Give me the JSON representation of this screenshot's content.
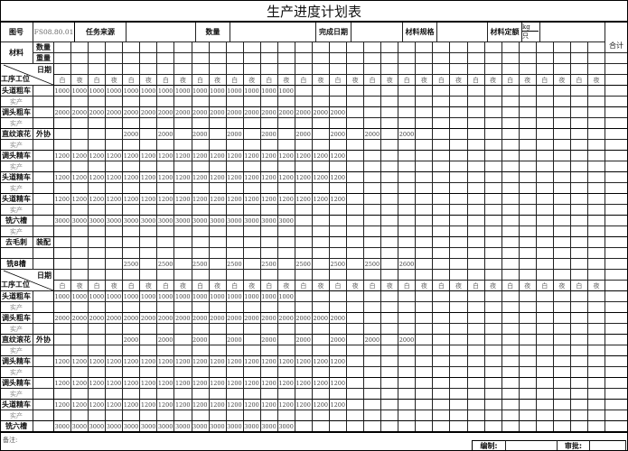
{
  "title": "生产进度计划表",
  "header": {
    "drawing_no_label": "图号",
    "drawing_no": "FS08.80.01",
    "task_source_label": "任务来源",
    "task_source": "",
    "quantity_label": "数量",
    "quantity": "",
    "finish_date_label": "完成日期",
    "finish_date": "",
    "material_spec_label": "材料规格",
    "material_spec": "",
    "material_quota_label": "材料定额",
    "unit_kg": "kg",
    "unit_piece": "只",
    "total_label": "合计"
  },
  "material": {
    "label": "材料",
    "count_label": "数量",
    "weight_label": "重量"
  },
  "date_label": "日期",
  "process_label": "工序工位",
  "shifts": [
    "白",
    "夜",
    "白",
    "夜",
    "白",
    "夜",
    "白",
    "夜",
    "白",
    "夜",
    "白",
    "夜",
    "白",
    "夜",
    "白",
    "夜",
    "白",
    "夜",
    "白",
    "夜",
    "白",
    "夜",
    "白",
    "夜",
    "白",
    "夜",
    "白",
    "夜",
    "白",
    "夜",
    "白",
    "夜"
  ],
  "actual_label": "实产",
  "sections": [
    {
      "rows": [
        {
          "label": "头道粗车",
          "sub": "",
          "actual": true,
          "values": [
            "1000",
            "1000",
            "1000",
            "1000",
            "1000",
            "1000",
            "1000",
            "1000",
            "1000",
            "1000",
            "1000",
            "1000",
            "1000",
            "1000",
            "",
            "",
            "",
            "",
            "",
            "",
            "",
            "",
            "",
            "",
            "",
            "",
            "",
            "",
            "",
            "",
            "",
            ""
          ]
        },
        {
          "label": "调头粗车",
          "sub": "",
          "actual": true,
          "values": [
            "2000",
            "2000",
            "2000",
            "2000",
            "2000",
            "2000",
            "2000",
            "2000",
            "2000",
            "2000",
            "2000",
            "2000",
            "2000",
            "2000",
            "2000",
            "2000",
            "2000",
            "",
            "",
            "",
            "",
            "",
            "",
            "",
            "",
            "",
            "",
            "",
            "",
            "",
            "",
            ""
          ]
        },
        {
          "label": "直纹滚花",
          "sub": "外协",
          "actual": true,
          "values": [
            "",
            "",
            "",
            "",
            "2000",
            "",
            "2000",
            "",
            "2000",
            "",
            "2000",
            "",
            "2000",
            "",
            "2000",
            "",
            "2000",
            "",
            "2000",
            "",
            "2000",
            "",
            "",
            "",
            "",
            "",
            "",
            "",
            "",
            "",
            "",
            ""
          ]
        },
        {
          "label": "调头精车",
          "sub": "",
          "actual": true,
          "values": [
            "1200",
            "1200",
            "1200",
            "1200",
            "1200",
            "1200",
            "1200",
            "1200",
            "1200",
            "1200",
            "1200",
            "1200",
            "1200",
            "1200",
            "1200",
            "1200",
            "1200",
            "",
            "",
            "",
            "",
            "",
            "",
            "",
            "",
            "",
            "",
            "",
            "",
            "",
            "",
            ""
          ]
        },
        {
          "label": "头道精车",
          "sub": "",
          "actual": true,
          "values": [
            "1200",
            "1200",
            "1200",
            "1200",
            "1200",
            "1200",
            "1200",
            "1200",
            "1200",
            "1200",
            "1200",
            "1200",
            "1200",
            "1200",
            "1200",
            "1200",
            "1200",
            "",
            "",
            "",
            "",
            "",
            "",
            "",
            "",
            "",
            "",
            "",
            "",
            "",
            "",
            ""
          ]
        },
        {
          "label": "头道精车",
          "sub": "",
          "actual": true,
          "values": [
            "1200",
            "1200",
            "1200",
            "1200",
            "1200",
            "1200",
            "1200",
            "1200",
            "1200",
            "1200",
            "1200",
            "1200",
            "1200",
            "1200",
            "1200",
            "1200",
            "1200",
            "",
            "",
            "",
            "",
            "",
            "",
            "",
            "",
            "",
            "",
            "",
            "",
            "",
            "",
            ""
          ]
        },
        {
          "label": "铣六槽",
          "sub": "",
          "actual": true,
          "values": [
            "3000",
            "3000",
            "3000",
            "3000",
            "3000",
            "3000",
            "3000",
            "3000",
            "3000",
            "3000",
            "3000",
            "3000",
            "3000",
            "3000",
            "",
            "",
            "",
            "",
            "",
            "",
            "",
            "",
            "",
            "",
            "",
            "",
            "",
            "",
            "",
            "",
            "",
            ""
          ]
        },
        {
          "label": "去毛刺",
          "sub": "装配",
          "actual": false,
          "values": [
            "",
            "",
            "",
            "",
            "",
            "",
            "",
            "",
            "",
            "",
            "",
            "",
            "",
            "",
            "",
            "",
            "",
            "",
            "",
            "",
            "",
            "",
            "",
            "",
            "",
            "",
            "",
            "",
            "",
            "",
            "",
            ""
          ]
        },
        {
          "label": "铣8槽",
          "sub": "",
          "actual": false,
          "values": [
            "",
            "",
            "",
            "",
            "2500",
            "",
            "2500",
            "",
            "2500",
            "",
            "2500",
            "",
            "2500",
            "",
            "2500",
            "",
            "2500",
            "",
            "2500",
            "",
            "2600",
            "",
            "",
            "",
            "",
            "",
            "",
            "",
            "",
            "",
            "",
            ""
          ]
        }
      ]
    },
    {
      "rows": [
        {
          "label": "头道粗车",
          "sub": "",
          "actual": true,
          "values": [
            "1000",
            "1000",
            "1000",
            "1000",
            "1000",
            "1000",
            "1000",
            "1000",
            "1000",
            "1000",
            "1000",
            "1000",
            "1000",
            "1000",
            "",
            "",
            "",
            "",
            "",
            "",
            "",
            "",
            "",
            "",
            "",
            "",
            "",
            "",
            "",
            "",
            "",
            ""
          ]
        },
        {
          "label": "调头粗车",
          "sub": "",
          "actual": true,
          "values": [
            "2000",
            "2000",
            "2000",
            "2000",
            "2000",
            "2000",
            "2000",
            "2000",
            "2000",
            "2000",
            "2000",
            "2000",
            "2000",
            "2000",
            "2000",
            "2000",
            "2000",
            "",
            "",
            "",
            "",
            "",
            "",
            "",
            "",
            "",
            "",
            "",
            "",
            "",
            "",
            ""
          ]
        },
        {
          "label": "直纹滚花",
          "sub": "外协",
          "actual": true,
          "values": [
            "",
            "",
            "",
            "",
            "2000",
            "",
            "2000",
            "",
            "2000",
            "",
            "2000",
            "",
            "2000",
            "",
            "2000",
            "",
            "2000",
            "",
            "2000",
            "",
            "2000",
            "",
            "",
            "",
            "",
            "",
            "",
            "",
            "",
            "",
            "",
            ""
          ]
        },
        {
          "label": "调头精车",
          "sub": "",
          "actual": true,
          "values": [
            "1200",
            "1200",
            "1200",
            "1200",
            "1200",
            "1200",
            "1200",
            "1200",
            "1200",
            "1200",
            "1200",
            "1200",
            "1200",
            "1200",
            "1200",
            "1200",
            "1200",
            "",
            "",
            "",
            "",
            "",
            "",
            "",
            "",
            "",
            "",
            "",
            "",
            "",
            "",
            ""
          ]
        },
        {
          "label": "调头精车",
          "sub": "",
          "actual": true,
          "values": [
            "1200",
            "1200",
            "1200",
            "1200",
            "1200",
            "1200",
            "1200",
            "1200",
            "1200",
            "1200",
            "1200",
            "1200",
            "1200",
            "1200",
            "1200",
            "1200",
            "1200",
            "",
            "",
            "",
            "",
            "",
            "",
            "",
            "",
            "",
            "",
            "",
            "",
            "",
            "",
            ""
          ]
        },
        {
          "label": "头道精车",
          "sub": "",
          "actual": true,
          "values": [
            "1200",
            "1200",
            "1200",
            "1200",
            "1200",
            "1200",
            "1200",
            "1200",
            "1200",
            "1200",
            "1200",
            "1200",
            "1200",
            "1200",
            "1200",
            "1200",
            "1200",
            "",
            "",
            "",
            "",
            "",
            "",
            "",
            "",
            "",
            "",
            "",
            "",
            "",
            "",
            ""
          ]
        },
        {
          "label": "铣六槽",
          "sub": "",
          "actual": false,
          "values": [
            "3000",
            "3000",
            "3000",
            "3000",
            "3000",
            "3000",
            "3000",
            "3000",
            "3000",
            "3000",
            "3000",
            "3000",
            "3000",
            "3000",
            "",
            "",
            "",
            "",
            "",
            "",
            "",
            "",
            "",
            "",
            "",
            "",
            "",
            "",
            "",
            "",
            "",
            ""
          ]
        }
      ]
    }
  ],
  "footer": {
    "remarks_label": "备注:",
    "prepared_by_label": "编制:",
    "prepared_by": "",
    "approved_by_label": "审批:",
    "approved_by": ""
  }
}
